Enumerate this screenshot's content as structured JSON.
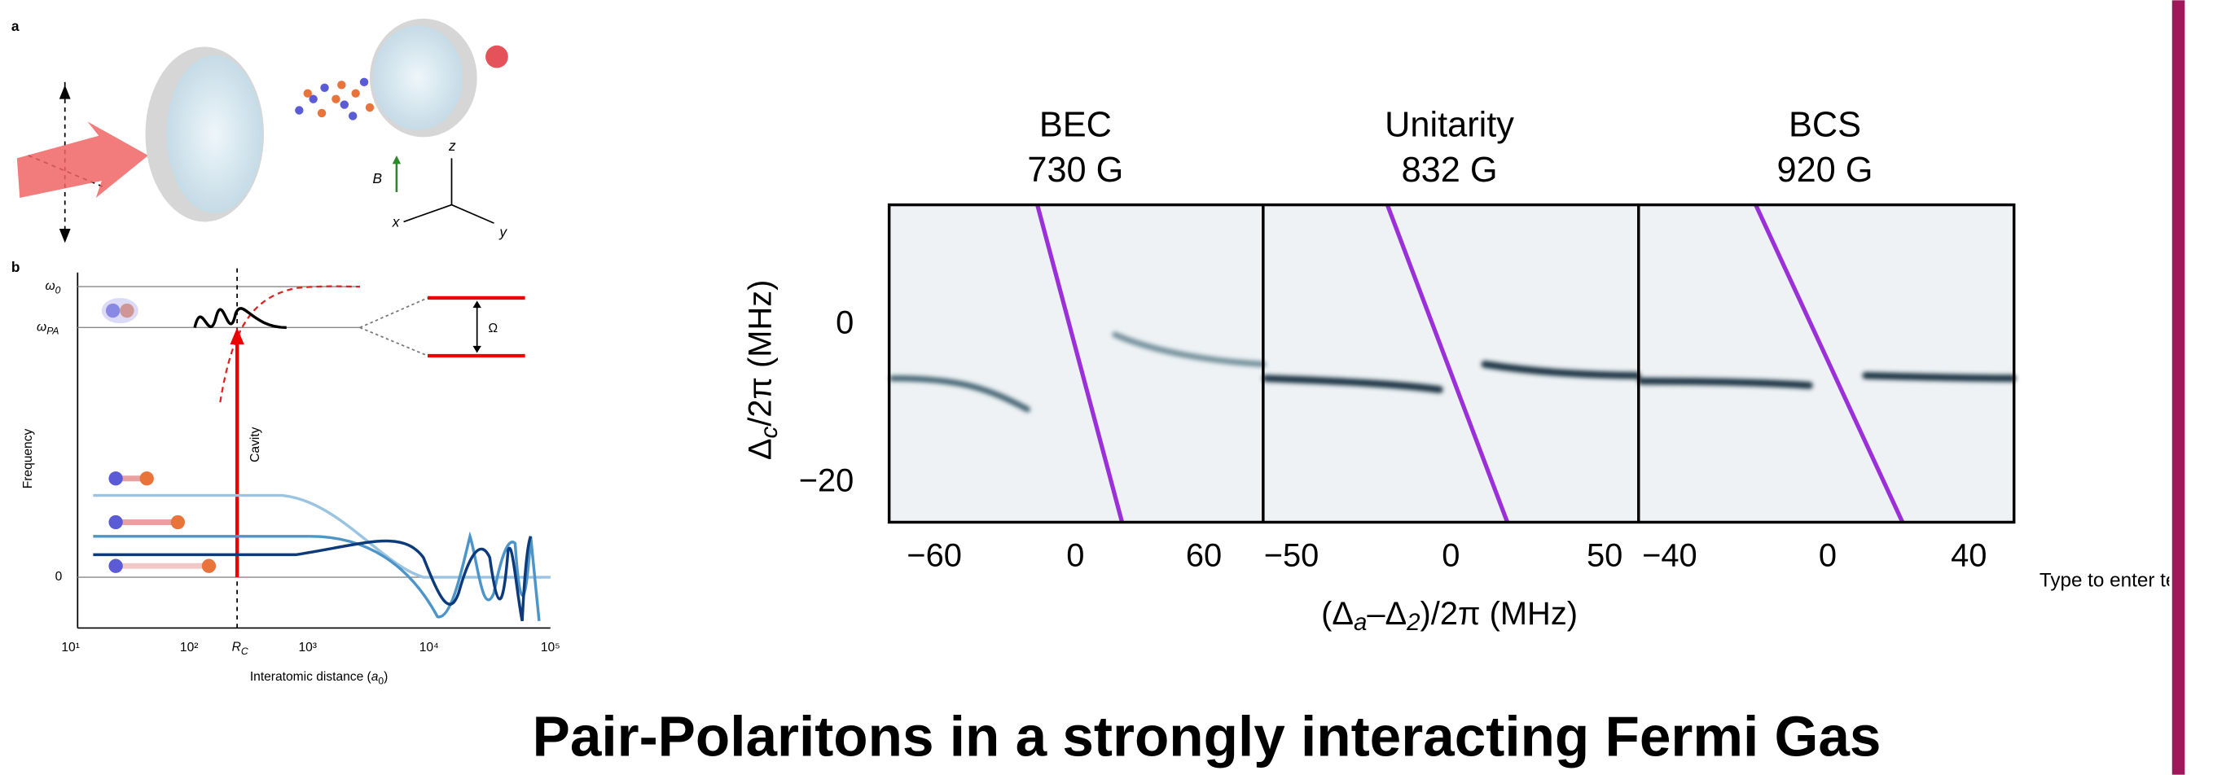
{
  "slide": {
    "title": "Pair-Polaritons in a strongly interacting Fermi Gas",
    "placeholder": "Type to enter text"
  },
  "panel_a": {
    "label": "a",
    "field": "B",
    "axes": [
      "z",
      "x",
      "y"
    ]
  },
  "panel_b": {
    "label": "b",
    "omega0": {
      "base": "ω",
      "sub": "0"
    },
    "omegaPA": {
      "base": "ω",
      "sub": "PA"
    },
    "rabi": "Ω",
    "arrow": "Cavity",
    "y_label": "Frequency",
    "y_zero": "0",
    "x_ticks": [
      "10¹",
      "10²",
      "10³",
      "10⁴",
      "10⁵"
    ],
    "rc": {
      "base": "R",
      "sub": "C"
    },
    "x_label": {
      "text": "Interatomic distance (",
      "sub": "0",
      "unit": "a",
      "close": ")"
    }
  },
  "spectra": {
    "panels": [
      {
        "title": "BEC",
        "field": "730 G",
        "x_ticks": [
          "−60",
          "0",
          "60"
        ]
      },
      {
        "title": "Unitarity",
        "field": "832 G",
        "x_ticks": [
          "−50",
          "0",
          "50"
        ]
      },
      {
        "title": "BCS",
        "field": "920 G",
        "x_ticks": [
          "−40",
          "0",
          "40"
        ]
      }
    ],
    "y_ticks": [
      "0",
      "−20"
    ],
    "y_label": [
      {
        "text": "Δ",
        "sub": false
      },
      {
        "text": "c",
        "sub": true
      },
      {
        "text": "/2π (MHz)",
        "sub": false
      }
    ],
    "x_label": [
      {
        "text": "(Δ",
        "sub": false
      },
      {
        "text": "a",
        "sub": true
      },
      {
        "text": "–Δ",
        "sub": false
      },
      {
        "text": "2",
        "sub": true
      },
      {
        "text": ")/2π (MHz)",
        "sub": false
      }
    ]
  }
}
